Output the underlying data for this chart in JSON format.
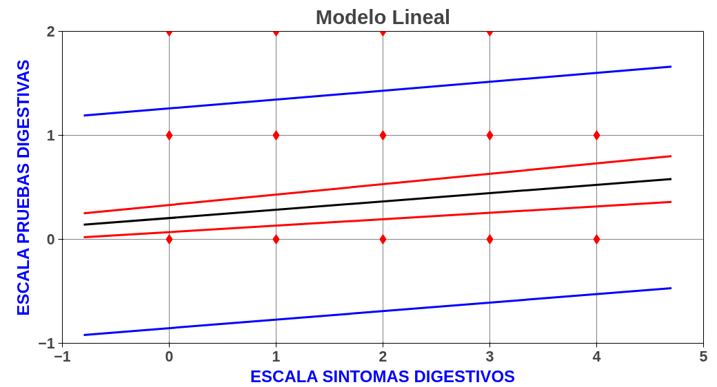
{
  "chart_data": {
    "type": "line",
    "title": "Modelo Lineal",
    "xlabel": "ESCALA SINTOMAS DIGESTIVOS",
    "ylabel": "ESCALA PRUEBAS DIGESTIVAS",
    "xlim": [
      -1,
      5
    ],
    "ylim": [
      -1,
      2
    ],
    "xticks": [
      -1,
      0,
      1,
      2,
      3,
      4,
      5
    ],
    "yticks": [
      -1,
      0,
      1,
      2
    ],
    "grid": true,
    "marker": "none",
    "line_style": "solid",
    "series": [
      {
        "type": "scatter",
        "marker": "diamond",
        "color": "#ff0000",
        "x": [
          0,
          1,
          2,
          3,
          0,
          1,
          2,
          3,
          4,
          0,
          1,
          2,
          3,
          4
        ],
        "values": [
          2,
          2,
          2,
          2,
          1,
          1,
          1,
          1,
          1,
          0,
          0,
          0,
          0,
          0
        ]
      },
      {
        "color": "#0000ff",
        "x": [
          -0.8,
          4.7
        ],
        "values": [
          1.19,
          1.66
        ]
      },
      {
        "color": "#ff0000",
        "x": [
          -0.8,
          4.7
        ],
        "values": [
          0.25,
          0.8
        ]
      },
      {
        "color": "#000000",
        "x": [
          -0.8,
          4.7
        ],
        "values": [
          0.14,
          0.58
        ]
      },
      {
        "color": "#ff0000",
        "x": [
          -0.8,
          4.7
        ],
        "values": [
          0.02,
          0.36
        ]
      },
      {
        "color": "#0000ff",
        "x": [
          -0.8,
          4.7
        ],
        "values": [
          -0.92,
          -0.47
        ]
      }
    ]
  }
}
